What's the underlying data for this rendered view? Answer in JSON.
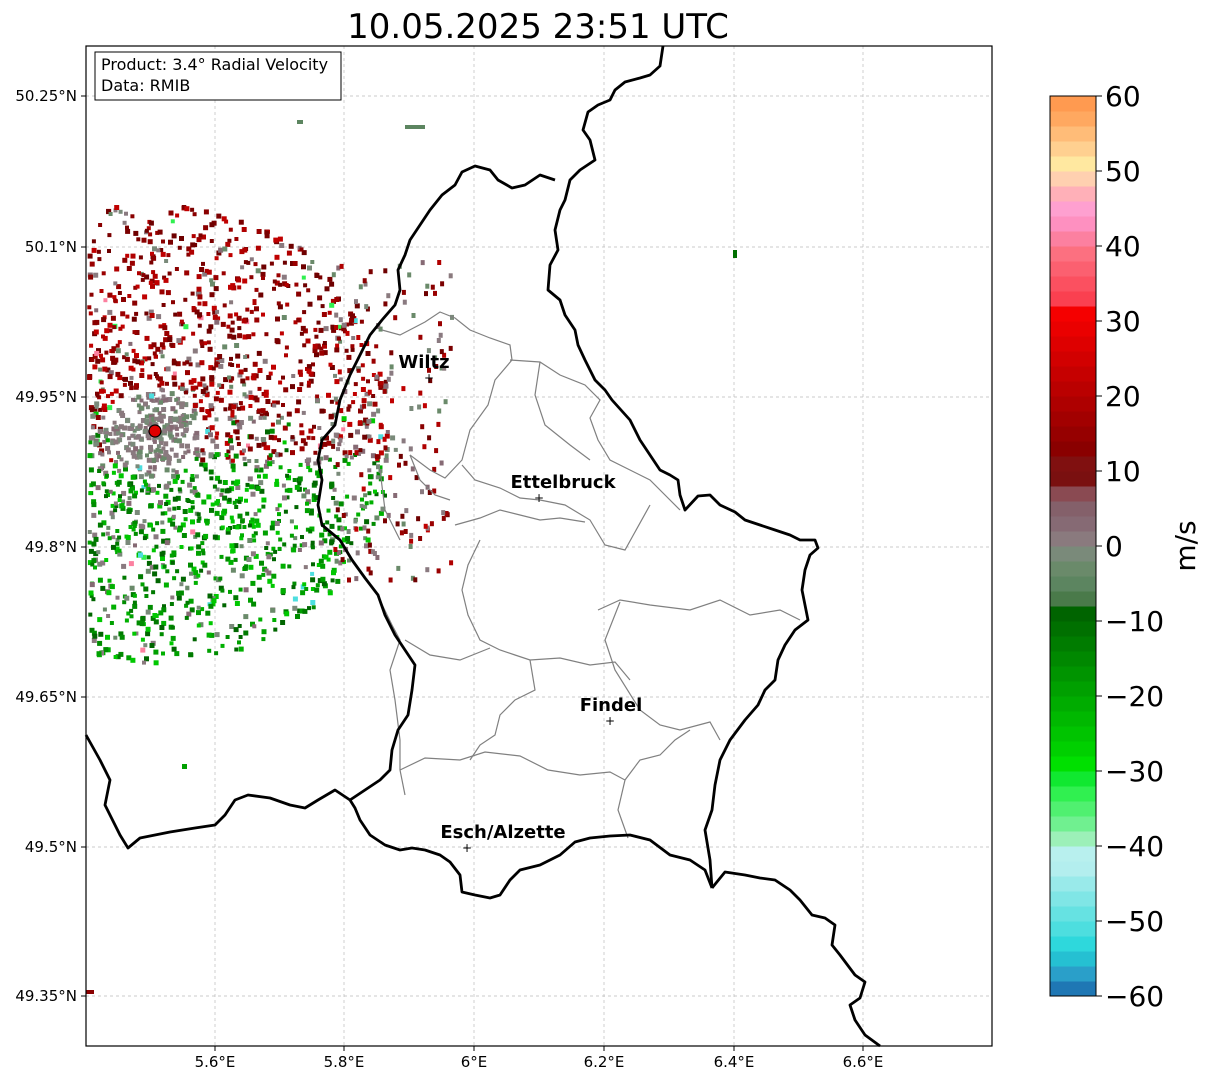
{
  "title": "10.05.2025 23:51 UTC",
  "info_box": {
    "product": "Product: 3.4° Radial Velocity",
    "data": "Data: RMIB"
  },
  "map": {
    "lon_ticks": [
      "5.6°E",
      "5.8°E",
      "6°E",
      "6.2°E",
      "6.4°E",
      "6.6°E"
    ],
    "lat_ticks": [
      "50.25°N",
      "50.1°N",
      "49.95°N",
      "49.8°N",
      "49.65°N",
      "49.5°N",
      "49.35°N"
    ],
    "cities": [
      {
        "name": "Wiltz"
      },
      {
        "name": "Ettelbruck"
      },
      {
        "name": "Findel"
      },
      {
        "name": "Esch/Alzette"
      }
    ]
  },
  "colorbar": {
    "unit": "m/s",
    "ticks": [
      "60",
      "50",
      "40",
      "30",
      "20",
      "10",
      "0",
      "−10",
      "−20",
      "−30",
      "−40",
      "−50",
      "−60"
    ],
    "range": [
      -60,
      60
    ],
    "colors": [
      "#1f77b4",
      "#2a9fc9",
      "#25c0d2",
      "#2ed8dc",
      "#4ddedf",
      "#66e2e2",
      "#80e6e6",
      "#99eaea",
      "#b3eeee",
      "#b8f0ee",
      "#9cf0b8",
      "#70f090",
      "#50f070",
      "#30f050",
      "#10e830",
      "#00e000",
      "#00d000",
      "#00c400",
      "#00b800",
      "#00ac00",
      "#00a000",
      "#009400",
      "#008800",
      "#007c00",
      "#007000",
      "#006400",
      "#4a7a4a",
      "#5c8560",
      "#6a8a6a",
      "#7a8a7a",
      "#8a7a7e",
      "#866a74",
      "#84606a",
      "#8a4a52",
      "#7a1010",
      "#801010",
      "#8a0000",
      "#960000",
      "#a20000",
      "#ae0000",
      "#ba0000",
      "#c60000",
      "#d20000",
      "#de0000",
      "#ea0000",
      "#f50000",
      "#fa4050",
      "#fb5060",
      "#fb6070",
      "#fc7080",
      "#fc80a0",
      "#fe90c0",
      "#fea0d0",
      "#ffb0b8",
      "#ffd0b0",
      "#ffe8a0",
      "#ffd090",
      "#ffbc78",
      "#ffa860",
      "#ff9a50"
    ]
  }
}
